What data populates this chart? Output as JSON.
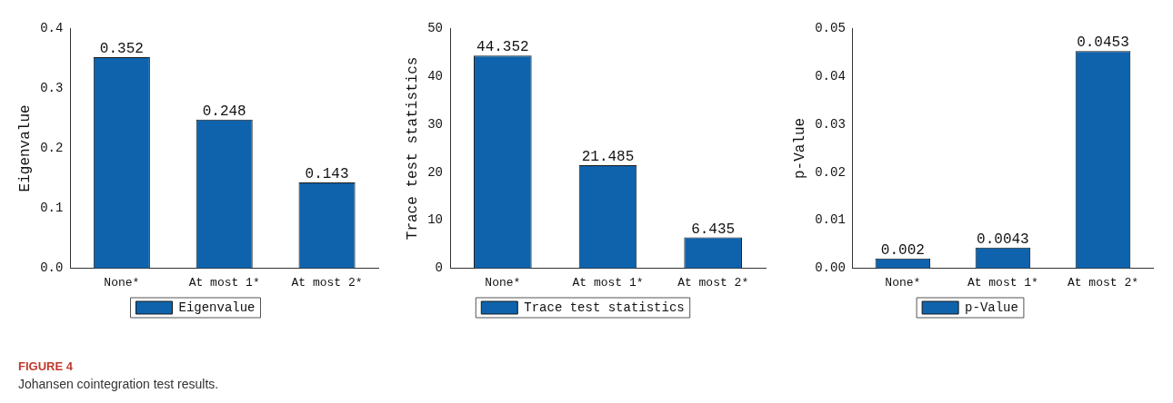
{
  "chart_data": [
    {
      "type": "bar",
      "ylabel": "Eigenvalue",
      "categories": [
        "None*",
        "At most 1*",
        "At most 2*"
      ],
      "series": [
        {
          "name": "Eigenvalue",
          "color": "#0e63ac",
          "values": [
            0.352,
            0.248,
            0.143
          ]
        }
      ],
      "ylim": [
        0,
        0.4
      ],
      "yticks": [
        {
          "value": 0,
          "label": "0.0"
        },
        0.1,
        0.2,
        0.3,
        0.4
      ],
      "data_labels": true,
      "legend": "bottom",
      "grid": false,
      "annotations": [
        "FIGURE 4",
        "Johansen cointegration test results."
      ]
    },
    {
      "type": "bar",
      "ylabel": "Trace test statistics",
      "categories": [
        "None*",
        "At most 1*",
        "At most 2*"
      ],
      "series": [
        {
          "name": "Trace test statistics",
          "color": "#0e63ac",
          "values": [
            44.352,
            21.485,
            6.435
          ]
        }
      ],
      "ylim": [
        0,
        50
      ],
      "yticks": [
        0,
        10,
        20,
        30,
        40,
        50
      ],
      "data_labels": true,
      "legend": "bottom",
      "grid": false
    },
    {
      "type": "bar",
      "ylabel": "p-Value",
      "categories": [
        "None*",
        "At most 1*",
        "At most 2*"
      ],
      "series": [
        {
          "name": "p-Value",
          "color": "#0e63ac",
          "values": [
            0.002,
            0.0043,
            0.0453
          ]
        }
      ],
      "ylim": [
        0,
        0.05
      ],
      "yticks": [
        {
          "value": 0,
          "label": "0.00"
        },
        0.01,
        0.02,
        0.03,
        0.04,
        0.05
      ],
      "data_labels": true,
      "legend": "bottom",
      "grid": false
    }
  ]
}
